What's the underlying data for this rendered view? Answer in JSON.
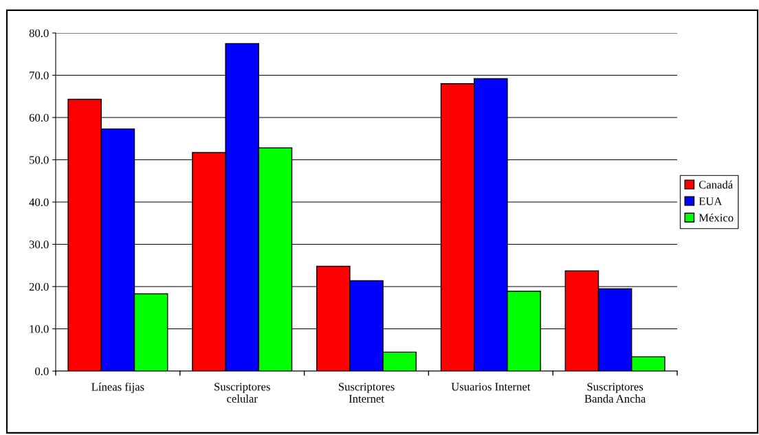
{
  "chart_data": {
    "type": "bar",
    "categories": [
      "Líneas fijas",
      "Suscriptores\ncelular",
      "Suscriptores\nInternet",
      "Usuarios Internet",
      "Suscriptores\nBanda Ancha"
    ],
    "series": [
      {
        "name": "Canadá",
        "color": "#ff0000",
        "values": [
          64.3,
          51.7,
          24.8,
          68.0,
          23.7
        ]
      },
      {
        "name": "EUA",
        "color": "#0000ff",
        "values": [
          57.3,
          77.5,
          21.4,
          69.2,
          19.5
        ]
      },
      {
        "name": "México",
        "color": "#00ff00",
        "values": [
          18.3,
          52.8,
          4.5,
          18.9,
          3.4
        ]
      }
    ],
    "ylim": [
      0,
      80
    ],
    "yticks": [
      {
        "value": 0,
        "label": "0.0"
      },
      {
        "value": 10,
        "label": "10.0"
      },
      {
        "value": 20,
        "label": "20.0"
      },
      {
        "value": 30,
        "label": "30.0"
      },
      {
        "value": 40,
        "label": "40.0"
      },
      {
        "value": 50,
        "label": "50.0"
      },
      {
        "value": 60,
        "label": "60.0"
      },
      {
        "value": 70,
        "label": "70.0"
      },
      {
        "value": 80,
        "label": "80.0"
      }
    ],
    "grid": "y",
    "legend": "right"
  }
}
